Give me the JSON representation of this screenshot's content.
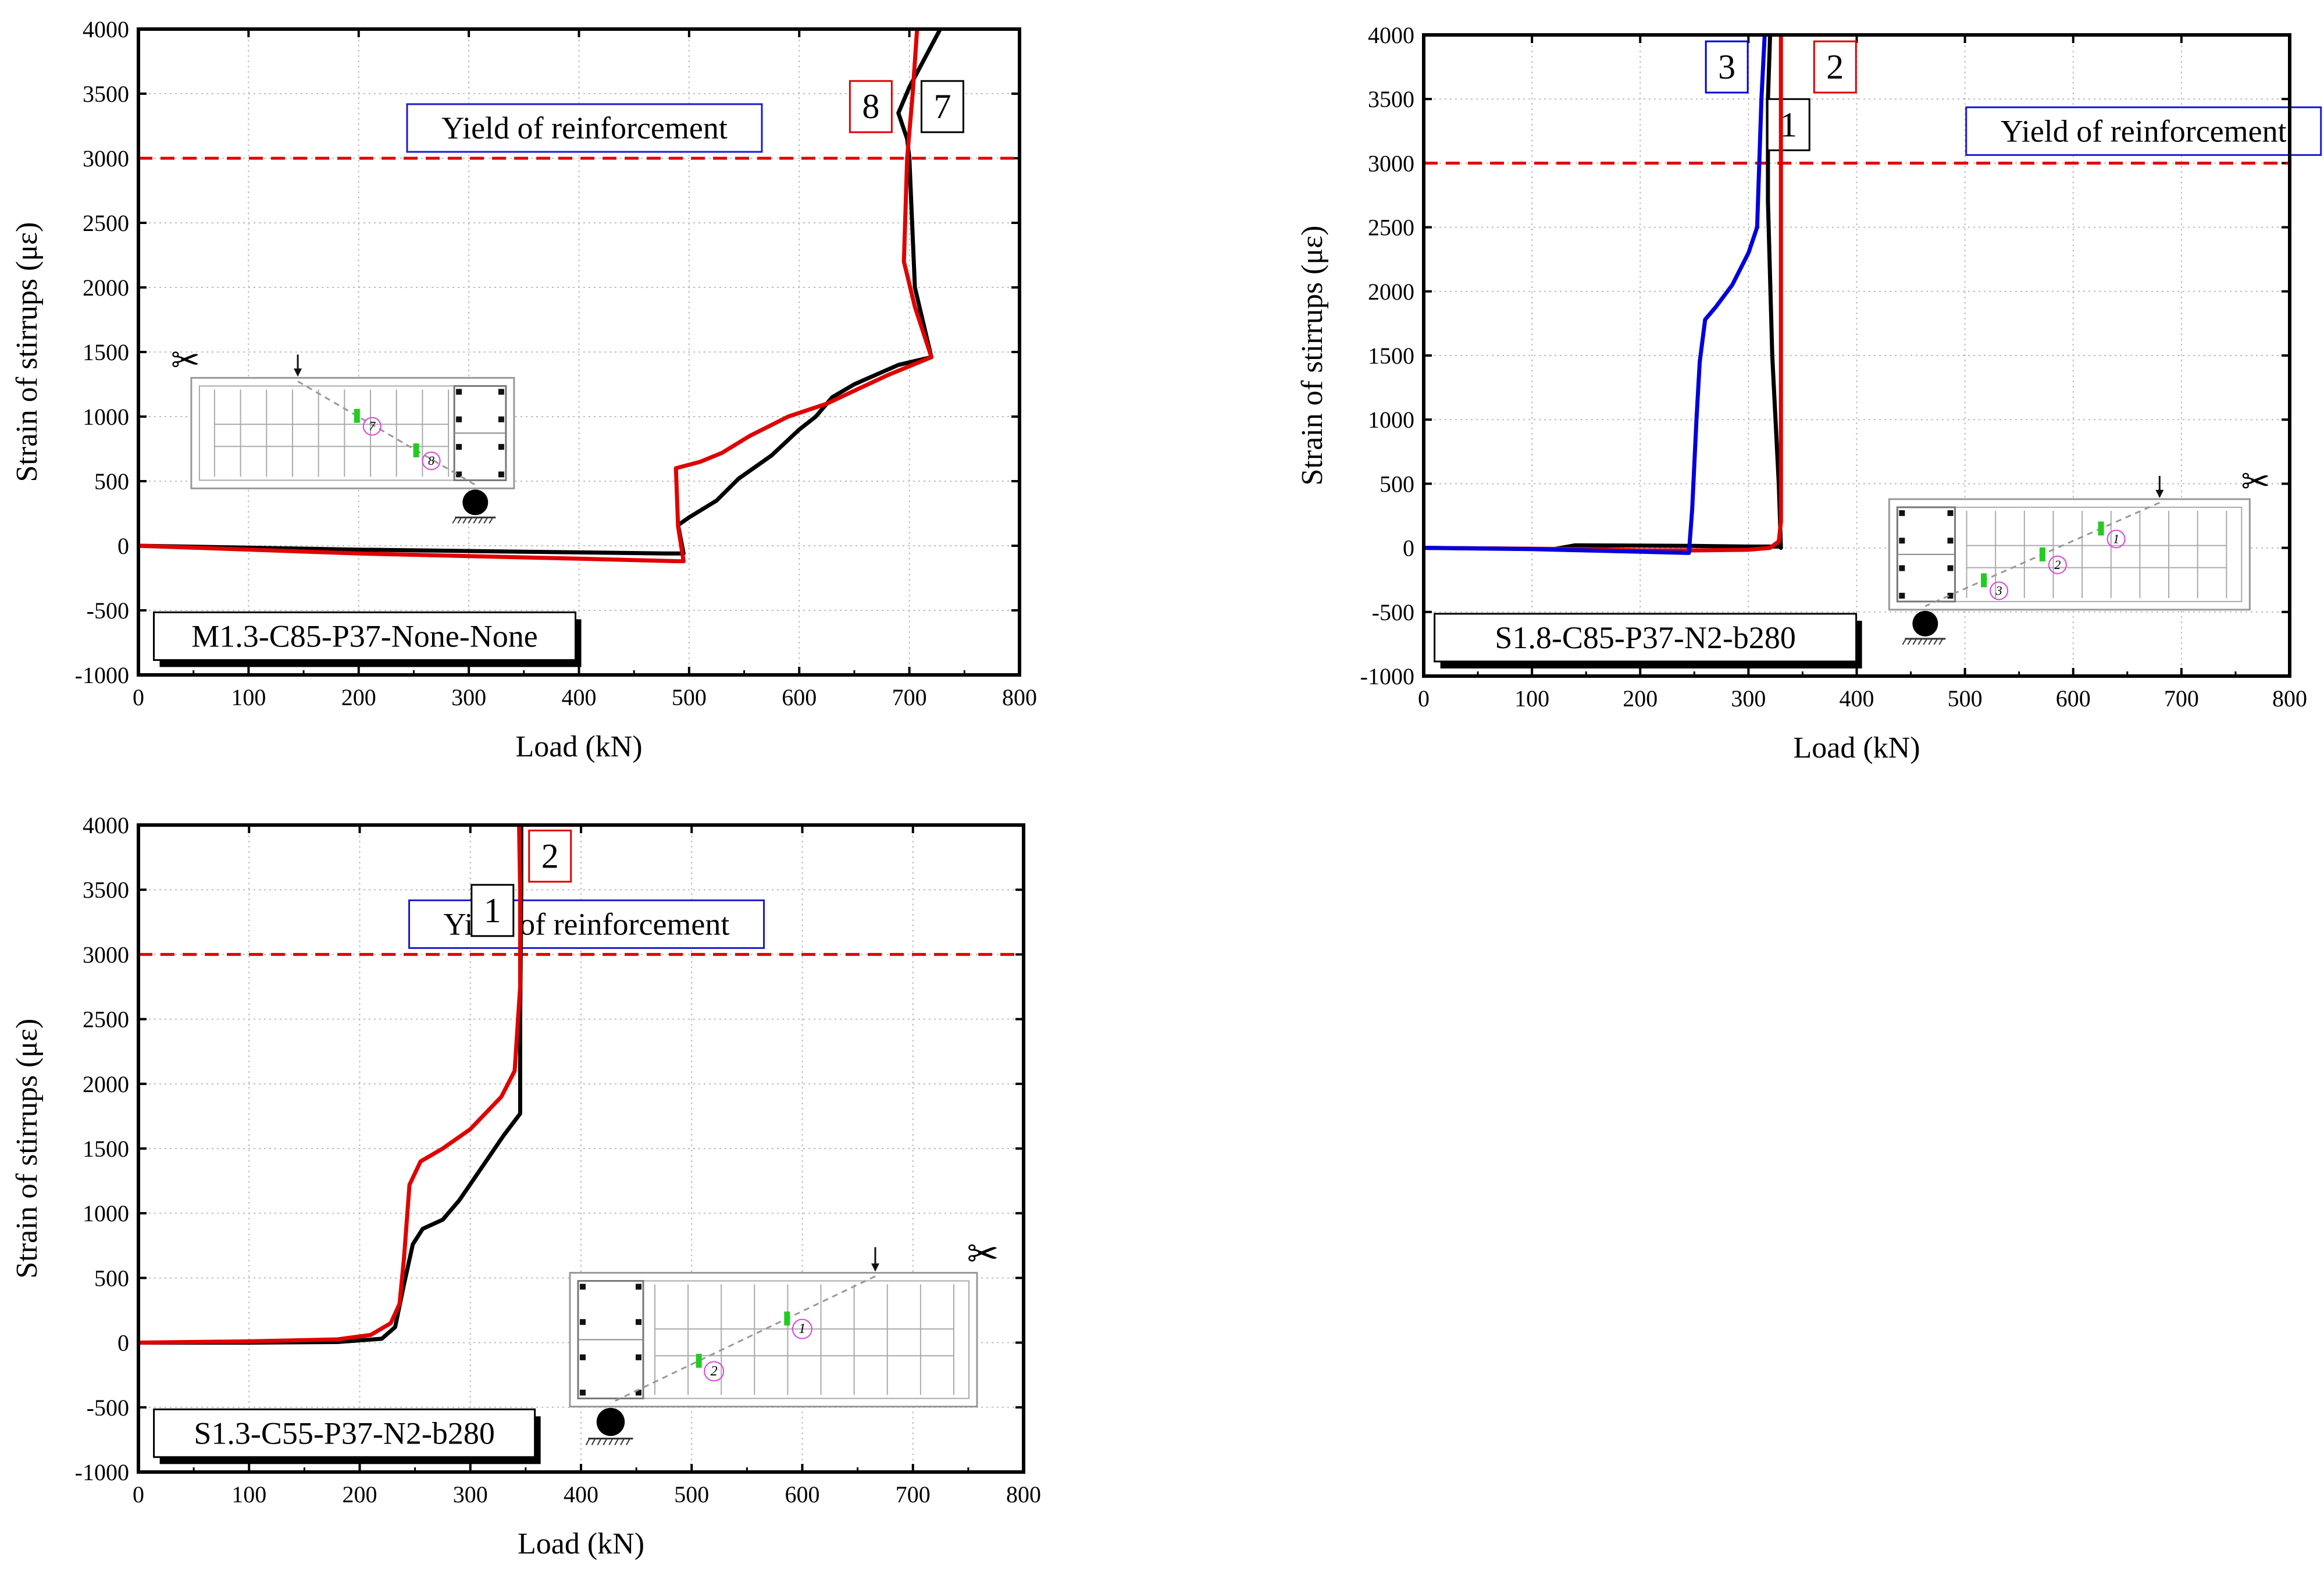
{
  "chart_data": [
    {
      "type": "line",
      "xlabel": "Load (kN)",
      "ylabel": "Strain of stirrups (με)",
      "xlim": [
        0,
        800
      ],
      "ylim": [
        -1000,
        4000
      ],
      "xticks": [
        "0",
        "100",
        "200",
        "300",
        "400",
        "500",
        "600",
        "700",
        "800"
      ],
      "yticks": [
        "-1000",
        "-500",
        "0",
        "500",
        "1000",
        "1500",
        "2000",
        "2500",
        "3000",
        "3500",
        "4000"
      ],
      "grid": true,
      "specimen": "M1.3-C85-P37-None-None",
      "yield": {
        "label": "Yield of reinforcement",
        "value": 3000
      },
      "inset": {
        "side": "left",
        "gauges": [
          "7",
          "8"
        ]
      },
      "series": [
        {
          "name": "7",
          "color": "#000000",
          "points": [
            [
              0,
              0
            ],
            [
              200,
              -30
            ],
            [
              480,
              -60
            ],
            [
              495,
              -60
            ],
            [
              490,
              160
            ],
            [
              500,
              220
            ],
            [
              525,
              350
            ],
            [
              545,
              520
            ],
            [
              575,
              700
            ],
            [
              600,
              900
            ],
            [
              615,
              1000
            ],
            [
              630,
              1150
            ],
            [
              650,
              1250
            ],
            [
              690,
              1400
            ],
            [
              720,
              1460
            ],
            [
              705,
              2000
            ],
            [
              700,
              3000
            ],
            [
              698,
              3150
            ],
            [
              690,
              3350
            ],
            [
              700,
              3550
            ],
            [
              728,
              4000
            ]
          ],
          "label": {
            "text": "7",
            "x": 730,
            "y": 3400,
            "color": "#000000"
          }
        },
        {
          "name": "8",
          "color": "#e00000",
          "points": [
            [
              0,
              0
            ],
            [
              200,
              -60
            ],
            [
              400,
              -100
            ],
            [
              490,
              -120
            ],
            [
              495,
              -120
            ],
            [
              490,
              150
            ],
            [
              488,
              600
            ],
            [
              510,
              650
            ],
            [
              530,
              720
            ],
            [
              555,
              850
            ],
            [
              590,
              1000
            ],
            [
              625,
              1100
            ],
            [
              650,
              1200
            ],
            [
              680,
              1320
            ],
            [
              720,
              1460
            ],
            [
              705,
              1850
            ],
            [
              695,
              2200
            ],
            [
              698,
              3000
            ],
            [
              703,
              3500
            ],
            [
              707,
              4000
            ]
          ],
          "label": {
            "text": "8",
            "x": 665,
            "y": 3400,
            "color": "#e00000"
          }
        }
      ]
    },
    {
      "type": "line",
      "xlabel": "Load (kN)",
      "ylabel": "Strain of stirrups (με)",
      "xlim": [
        0,
        800
      ],
      "ylim": [
        -1000,
        4000
      ],
      "xticks": [
        "0",
        "100",
        "200",
        "300",
        "400",
        "500",
        "600",
        "700",
        "800"
      ],
      "yticks": [
        "-1000",
        "-500",
        "0",
        "500",
        "1000",
        "1500",
        "2000",
        "2500",
        "3000",
        "3500",
        "4000"
      ],
      "grid": true,
      "specimen": "S1.8-C85-P37-N2-b280",
      "yield": {
        "label": "Yield of reinforcement",
        "value": 3000
      },
      "inset": {
        "side": "right",
        "gauges": [
          "1",
          "2",
          "3"
        ]
      },
      "series": [
        {
          "name": "1",
          "color": "#000000",
          "points": [
            [
              0,
              0
            ],
            [
              120,
              -10
            ],
            [
              140,
              20
            ],
            [
              250,
              15
            ],
            [
              300,
              10
            ],
            [
              330,
              10
            ],
            [
              330,
              0
            ],
            [
              328,
              500
            ],
            [
              325,
              1000
            ],
            [
              322,
              1500
            ],
            [
              320,
              2100
            ],
            [
              318,
              2700
            ],
            [
              318,
              3500
            ],
            [
              320,
              4000
            ]
          ],
          "label": {
            "text": "1",
            "x": 337,
            "y": 3300,
            "color": "#000000"
          }
        },
        {
          "name": "2",
          "color": "#e00000",
          "points": [
            [
              0,
              0
            ],
            [
              150,
              -10
            ],
            [
              200,
              -20
            ],
            [
              250,
              -20
            ],
            [
              300,
              -15
            ],
            [
              320,
              0
            ],
            [
              328,
              50
            ],
            [
              330,
              200
            ],
            [
              330,
              1000
            ],
            [
              330,
              3000
            ],
            [
              330,
              4000
            ]
          ],
          "label": {
            "text": "2",
            "x": 380,
            "y": 3750,
            "color": "#e00000"
          }
        },
        {
          "name": "3",
          "color": "#0000dd",
          "points": [
            [
              0,
              0
            ],
            [
              100,
              -10
            ],
            [
              200,
              -30
            ],
            [
              245,
              -40
            ],
            [
              248,
              300
            ],
            [
              252,
              1000
            ],
            [
              255,
              1450
            ],
            [
              260,
              1780
            ],
            [
              270,
              1880
            ],
            [
              285,
              2050
            ],
            [
              300,
              2300
            ],
            [
              308,
              2500
            ],
            [
              310,
              3000
            ],
            [
              312,
              3500
            ],
            [
              315,
              4000
            ]
          ],
          "label": {
            "text": "3",
            "x": 280,
            "y": 3750,
            "color": "#0000dd"
          }
        }
      ]
    },
    {
      "type": "line",
      "xlabel": "Load (kN)",
      "ylabel": "Strain of stirrups (με)",
      "xlim": [
        0,
        800
      ],
      "ylim": [
        -1000,
        4000
      ],
      "xticks": [
        "0",
        "100",
        "200",
        "300",
        "400",
        "500",
        "600",
        "700",
        "800"
      ],
      "yticks": [
        "-1000",
        "-500",
        "0",
        "500",
        "1000",
        "1500",
        "2000",
        "2500",
        "3000",
        "3500",
        "4000"
      ],
      "grid": true,
      "specimen": "S1.3-C55-P37-N2-b280",
      "yield": {
        "label": "Yield of reinforcement",
        "value": 3000
      },
      "inset": {
        "side": "right",
        "gauges": [
          "1",
          "2"
        ]
      },
      "series": [
        {
          "name": "1",
          "color": "#000000",
          "points": [
            [
              0,
              0
            ],
            [
              100,
              0
            ],
            [
              180,
              5
            ],
            [
              220,
              30
            ],
            [
              232,
              120
            ],
            [
              240,
              450
            ],
            [
              248,
              760
            ],
            [
              257,
              880
            ],
            [
              275,
              950
            ],
            [
              290,
              1100
            ],
            [
              310,
              1350
            ],
            [
              330,
              1600
            ],
            [
              345,
              1770
            ],
            [
              345,
              2500
            ],
            [
              346,
              3500
            ],
            [
              346,
              4000
            ]
          ],
          "label": {
            "text": "1",
            "x": 320,
            "y": 3340,
            "color": "#000000"
          }
        },
        {
          "name": "2",
          "color": "#e00000",
          "points": [
            [
              0,
              0
            ],
            [
              100,
              10
            ],
            [
              180,
              25
            ],
            [
              210,
              60
            ],
            [
              228,
              150
            ],
            [
              236,
              300
            ],
            [
              240,
              650
            ],
            [
              245,
              1220
            ],
            [
              255,
              1400
            ],
            [
              275,
              1500
            ],
            [
              300,
              1650
            ],
            [
              328,
              1900
            ],
            [
              340,
              2100
            ],
            [
              345,
              2750
            ],
            [
              345,
              3500
            ],
            [
              344,
              4000
            ]
          ],
          "label": {
            "text": "2",
            "x": 372,
            "y": 3760,
            "color": "#e00000"
          }
        }
      ]
    }
  ]
}
